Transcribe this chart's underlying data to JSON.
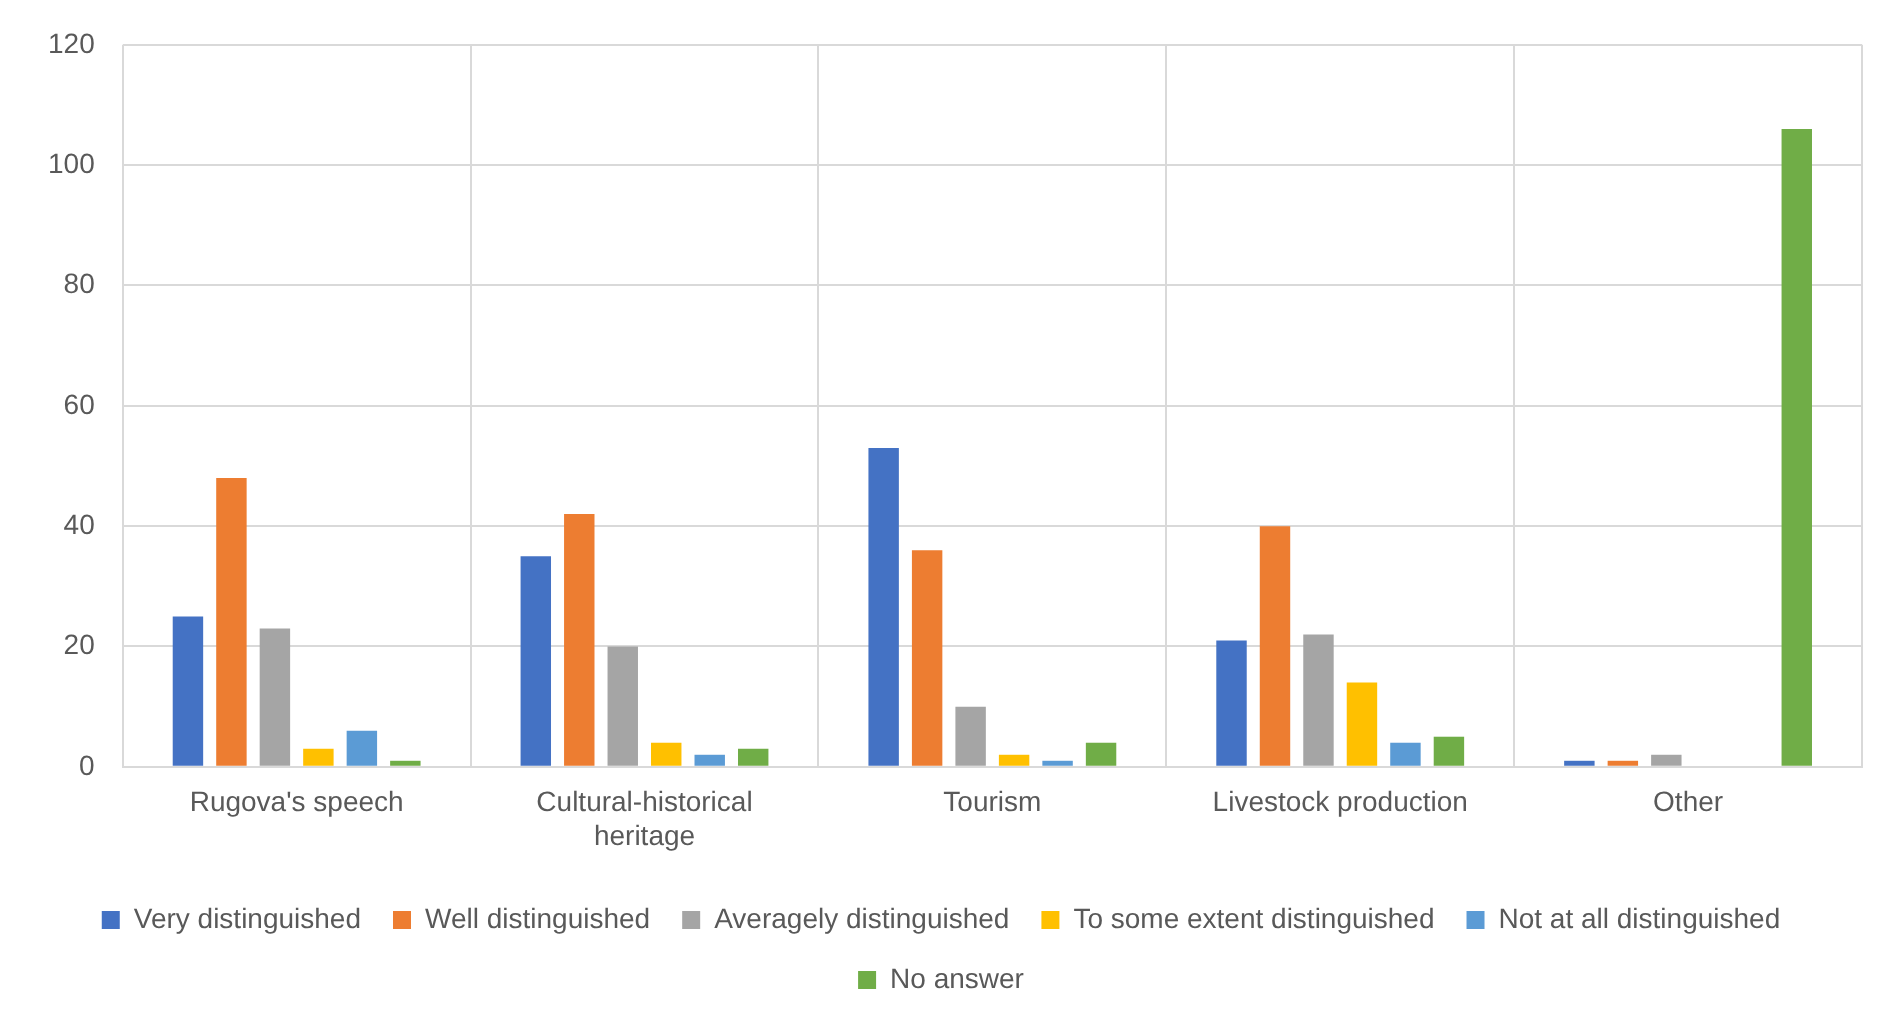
{
  "chart_data": {
    "type": "bar",
    "categories": [
      "Rugova's speech",
      "Cultural-historical heritage",
      "Tourism",
      "Livestock production",
      "Other"
    ],
    "series": [
      {
        "name": "Very distinguished",
        "color": "#4472c4",
        "values": [
          25,
          35,
          53,
          21,
          1
        ]
      },
      {
        "name": "Well distinguished",
        "color": "#ed7d31",
        "values": [
          48,
          42,
          36,
          40,
          1
        ]
      },
      {
        "name": "Averagely distinguished",
        "color": "#a5a5a5",
        "values": [
          23,
          20,
          10,
          22,
          2
        ]
      },
      {
        "name": "To some extent distinguished",
        "color": "#ffc000",
        "values": [
          3,
          4,
          2,
          14,
          0
        ]
      },
      {
        "name": "Not at all distinguished",
        "color": "#5b9bd5",
        "values": [
          6,
          2,
          1,
          4,
          0
        ]
      },
      {
        "name": "No answer",
        "color": "#70ad47",
        "values": [
          1,
          3,
          4,
          5,
          106
        ]
      }
    ],
    "ylim": [
      0,
      120
    ],
    "yticks": [
      0,
      20,
      40,
      60,
      80,
      100,
      120
    ],
    "grid": true,
    "legend": "bottom"
  }
}
